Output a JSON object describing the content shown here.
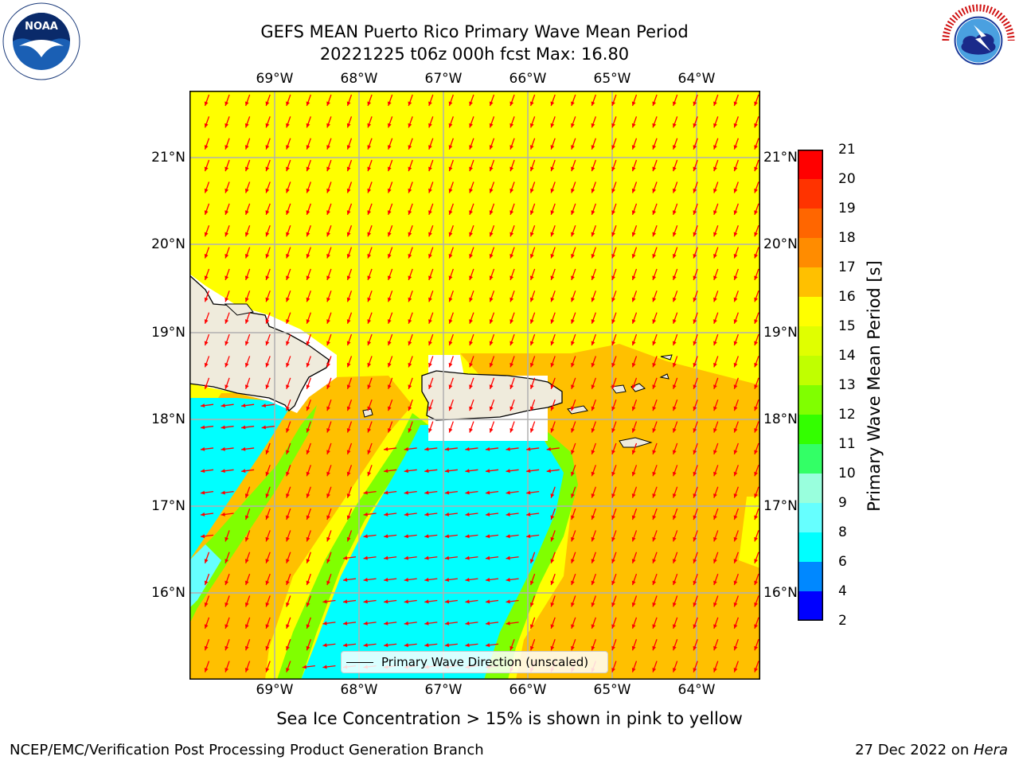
{
  "title": {
    "line1": "GEFS MEAN Puerto Rico Primary Wave Mean Period",
    "line2": "20221225 t06z 000h fcst   Max: 16.80"
  },
  "logos": {
    "left": "NOAA",
    "left_ring": "NATIONAL OCEANIC AND ATMOSPHERIC ADMINISTRATION · U.S. DEPARTMENT OF COMMERCE",
    "right_ring": "NATIONAL WEATHER SERVICE"
  },
  "axes": {
    "lon_labels": [
      "69°W",
      "68°W",
      "67°W",
      "66°W",
      "65°W",
      "64°W"
    ],
    "lat_labels": [
      "21°N",
      "20°N",
      "19°N",
      "18°N",
      "17°N",
      "16°N"
    ],
    "xlim": [
      -70,
      -63.25
    ],
    "ylim": [
      15,
      21.75
    ]
  },
  "legend": {
    "label": "Primary Wave Direction (unscaled)",
    "line_color": "#000000"
  },
  "colorbar": {
    "label": "Primary Wave Mean Period [s]",
    "ticks": [
      "21",
      "20",
      "19",
      "18",
      "17",
      "16",
      "15",
      "14",
      "13",
      "12",
      "11",
      "10",
      "9",
      "8",
      "6",
      "4",
      "2"
    ],
    "colors": [
      "#ff0000",
      "#ff3300",
      "#ff6600",
      "#ff8c00",
      "#ffc000",
      "#ffff00",
      "#e0ff00",
      "#c0ff00",
      "#80ff00",
      "#33ff00",
      "#33ff66",
      "#99ffdd",
      "#66ffff",
      "#00ffff",
      "#0088ff",
      "#0000ff"
    ]
  },
  "caption": "Sea Ice Concentration > 15% is shown in pink to yellow",
  "footer": {
    "left": "NCEP/EMC/Verification Post Processing Product Generation Branch",
    "right_prefix": "27 Dec 2022 on ",
    "right_host": "Hera"
  },
  "map_colors": {
    "period_15_16": "#ffff00",
    "period_16_17": "#ffc000",
    "period_14_15": "#e0ff00",
    "period_12_13": "#80ff00",
    "period_11_12": "#33ff00",
    "period_9_10": "#99ffdd",
    "period_8_9": "#66ffff",
    "period_6_8": "#00ffff",
    "land": "#efebdc",
    "arrows": "#ff0000"
  }
}
